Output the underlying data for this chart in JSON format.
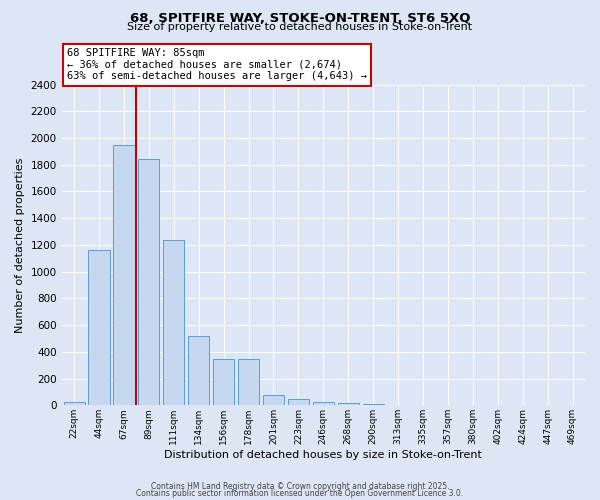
{
  "title_line1": "68, SPITFIRE WAY, STOKE-ON-TRENT, ST6 5XQ",
  "title_line2": "Size of property relative to detached houses in Stoke-on-Trent",
  "xlabel": "Distribution of detached houses by size in Stoke-on-Trent",
  "ylabel": "Number of detached properties",
  "categories": [
    "22sqm",
    "44sqm",
    "67sqm",
    "89sqm",
    "111sqm",
    "134sqm",
    "156sqm",
    "178sqm",
    "201sqm",
    "223sqm",
    "246sqm",
    "268sqm",
    "290sqm",
    "313sqm",
    "335sqm",
    "357sqm",
    "380sqm",
    "402sqm",
    "424sqm",
    "447sqm",
    "469sqm"
  ],
  "values": [
    25,
    1160,
    1950,
    1840,
    1240,
    520,
    350,
    350,
    80,
    50,
    25,
    20,
    10,
    5,
    3,
    2,
    1,
    1,
    0,
    0,
    0
  ],
  "bar_color": "#c5d8f0",
  "bar_edge_color": "#5b9bd5",
  "background_color": "#dce6f5",
  "grid_color": "#ffffff",
  "red_line_x": 3.0,
  "annotation_text": "68 SPITFIRE WAY: 85sqm\n← 36% of detached houses are smaller (2,674)\n63% of semi-detached houses are larger (4,643) →",
  "annotation_box_color": "#ffffff",
  "annotation_box_edge": "#cc0000",
  "ylim": [
    0,
    2400
  ],
  "yticks": [
    0,
    200,
    400,
    600,
    800,
    1000,
    1200,
    1400,
    1600,
    1800,
    2000,
    2200,
    2400
  ],
  "footer_line1": "Contains HM Land Registry data © Crown copyright and database right 2025.",
  "footer_line2": "Contains public sector information licensed under the Open Government Licence 3.0."
}
